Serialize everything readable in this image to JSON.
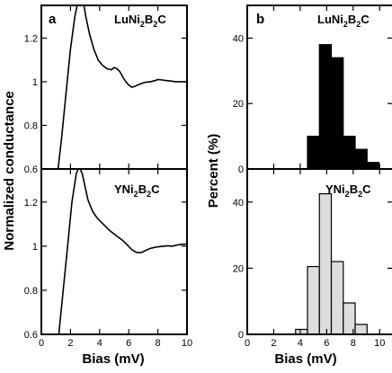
{
  "figure": {
    "left_ylabel": "Normalized conductance",
    "right_ylabel": "Percent (%)",
    "xlabel": "Bias (mV)"
  },
  "chart_data": [
    {
      "type": "line",
      "panel_letter": "a",
      "material": {
        "main": "LuNi",
        "sub1": "2",
        "mid": "B",
        "sub2": "2",
        "end": "C"
      },
      "xlim": [
        0,
        10
      ],
      "ylim": [
        0.6,
        1.35
      ],
      "xticks": [
        0,
        2,
        4,
        6,
        8,
        10
      ],
      "yticks": [
        0.6,
        0.8,
        1.0,
        1.2
      ],
      "ytick_labels": [
        "0.6",
        "0.8",
        "1",
        "1.2"
      ],
      "series": [
        {
          "x": [
            1.15,
            1.4,
            1.7,
            2.0,
            2.3,
            2.55,
            2.75,
            2.9,
            3.05,
            3.3,
            3.6,
            3.9,
            4.2,
            4.5,
            4.8,
            5.0,
            5.2,
            5.4,
            5.6,
            5.8,
            6.0,
            6.2,
            6.4,
            6.6,
            6.8,
            7.0,
            7.2,
            7.5,
            7.8,
            8.0,
            8.3,
            8.6,
            8.9,
            9.2,
            9.5,
            9.8,
            10.0
          ],
          "y": [
            0.6,
            0.75,
            0.95,
            1.15,
            1.3,
            1.38,
            1.4,
            1.36,
            1.3,
            1.22,
            1.15,
            1.1,
            1.075,
            1.06,
            1.055,
            1.065,
            1.06,
            1.045,
            1.02,
            1.0,
            0.985,
            0.975,
            0.978,
            0.985,
            0.99,
            0.995,
            0.998,
            1.0,
            1.005,
            1.01,
            1.008,
            1.005,
            1.003,
            1.0,
            1.0,
            1.0,
            1.0
          ]
        }
      ]
    },
    {
      "type": "bar",
      "panel_letter": "b",
      "material": {
        "main": "LuNi",
        "sub1": "2",
        "mid": "B",
        "sub2": "2",
        "end": "C"
      },
      "xlim": [
        0,
        11
      ],
      "ylim": [
        0,
        50
      ],
      "xticks": [
        0,
        2,
        4,
        6,
        8,
        10
      ],
      "yticks": [
        0,
        20,
        40
      ],
      "bar_width": 0.9,
      "bar_color": "#000000",
      "x": [
        5.0,
        5.9,
        6.8,
        7.7,
        8.6,
        9.5
      ],
      "values": [
        10,
        38,
        34,
        10,
        6,
        2
      ]
    },
    {
      "type": "line",
      "material": {
        "main": "YNi",
        "sub1": "2",
        "mid": "B",
        "sub2": "2",
        "end": "C"
      },
      "xlim": [
        0,
        10
      ],
      "ylim": [
        0.6,
        1.35
      ],
      "xticks": [
        0,
        2,
        4,
        6,
        8,
        10
      ],
      "yticks": [
        0.6,
        0.8,
        1.0,
        1.2
      ],
      "ytick_labels": [
        "0.6",
        "0.8",
        "1",
        "1.2"
      ],
      "series": [
        {
          "x": [
            1.2,
            1.5,
            1.8,
            2.1,
            2.4,
            2.6,
            2.8,
            3.0,
            3.2,
            3.5,
            3.8,
            4.1,
            4.4,
            4.7,
            5.0,
            5.3,
            5.6,
            5.9,
            6.2,
            6.5,
            6.8,
            7.0,
            7.2,
            7.5,
            7.8,
            8.1,
            8.4,
            8.7,
            9.0,
            9.3,
            9.6,
            10.0
          ],
          "y": [
            0.6,
            0.8,
            1.0,
            1.2,
            1.33,
            1.36,
            1.33,
            1.27,
            1.21,
            1.16,
            1.13,
            1.11,
            1.09,
            1.07,
            1.055,
            1.04,
            1.025,
            1.005,
            0.985,
            0.972,
            0.97,
            0.975,
            0.982,
            0.99,
            0.995,
            0.998,
            1.0,
            1.002,
            1.0,
            1.005,
            1.008,
            1.01
          ]
        }
      ]
    },
    {
      "type": "bar",
      "material": {
        "main": "YNi",
        "sub1": "2",
        "mid": "B",
        "sub2": "2",
        "end": "C"
      },
      "xlim": [
        0,
        11
      ],
      "ylim": [
        0,
        50
      ],
      "xticks": [
        0,
        2,
        4,
        6,
        8,
        10
      ],
      "yticks": [
        0,
        20,
        40
      ],
      "bar_width": 0.9,
      "bar_color": "#dddddd",
      "x": [
        4.1,
        5.0,
        5.9,
        6.8,
        7.7,
        8.6
      ],
      "values": [
        1.5,
        20.5,
        42.5,
        22,
        9.5,
        3
      ]
    }
  ]
}
